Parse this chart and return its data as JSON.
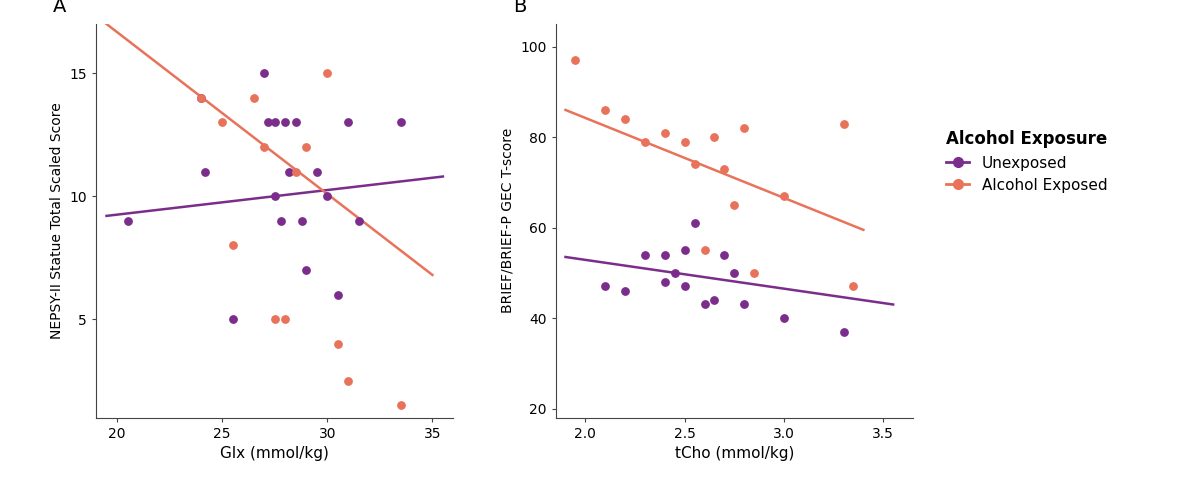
{
  "panel_A": {
    "title": "A",
    "xlabel": "Glx (mmol/kg)",
    "ylabel": "NEPSY-II Statue Total Scaled Score",
    "xlim": [
      19,
      36
    ],
    "ylim": [
      1,
      17
    ],
    "xticks": [
      20,
      25,
      30,
      35
    ],
    "yticks": [
      5,
      10,
      15
    ],
    "unexposed_x": [
      20.5,
      24.0,
      24.2,
      25.5,
      27.0,
      27.2,
      27.5,
      27.5,
      27.8,
      28.0,
      28.2,
      28.5,
      28.8,
      29.0,
      29.5,
      30.0,
      30.5,
      31.0,
      31.5,
      33.5
    ],
    "unexposed_y": [
      9.0,
      14.0,
      11.0,
      5.0,
      15.0,
      13.0,
      13.0,
      10.0,
      9.0,
      13.0,
      11.0,
      13.0,
      9.0,
      7.0,
      11.0,
      10.0,
      6.0,
      13.0,
      9.0,
      13.0
    ],
    "exposed_x": [
      24.0,
      25.0,
      25.5,
      26.5,
      27.0,
      27.5,
      28.0,
      28.5,
      29.0,
      30.0,
      30.5,
      31.0,
      33.5
    ],
    "exposed_y": [
      14.0,
      13.0,
      8.0,
      14.0,
      12.0,
      5.0,
      5.0,
      11.0,
      12.0,
      15.0,
      4.0,
      2.5,
      1.5
    ],
    "unexposed_line_x": [
      19.5,
      35.5
    ],
    "unexposed_line_y": [
      9.2,
      10.8
    ],
    "exposed_line_x": [
      19.5,
      35.0
    ],
    "exposed_line_y": [
      17.0,
      6.8
    ]
  },
  "panel_B": {
    "title": "B",
    "xlabel": "tCho (mmol/kg)",
    "ylabel": "BRIEF/BRIEF-P GEC T-score",
    "xlim": [
      1.85,
      3.65
    ],
    "ylim": [
      18,
      105
    ],
    "xticks": [
      2.0,
      2.5,
      3.0,
      3.5
    ],
    "yticks": [
      20,
      40,
      60,
      80,
      100
    ],
    "unexposed_x": [
      2.1,
      2.2,
      2.3,
      2.4,
      2.4,
      2.45,
      2.5,
      2.5,
      2.55,
      2.6,
      2.65,
      2.7,
      2.75,
      2.8,
      3.0,
      3.3
    ],
    "unexposed_y": [
      47.0,
      46.0,
      54.0,
      54.0,
      48.0,
      50.0,
      55.0,
      47.0,
      61.0,
      43.0,
      44.0,
      54.0,
      50.0,
      43.0,
      40.0,
      37.0
    ],
    "exposed_x": [
      1.95,
      2.1,
      2.2,
      2.3,
      2.4,
      2.5,
      2.55,
      2.6,
      2.65,
      2.7,
      2.75,
      2.8,
      2.85,
      3.0,
      3.3,
      3.35
    ],
    "exposed_y": [
      97.0,
      86.0,
      84.0,
      79.0,
      81.0,
      79.0,
      74.0,
      55.0,
      80.0,
      73.0,
      65.0,
      82.0,
      50.0,
      67.0,
      83.0,
      47.0
    ],
    "unexposed_line_x": [
      1.9,
      3.55
    ],
    "unexposed_line_y": [
      53.5,
      43.0
    ],
    "exposed_line_x": [
      1.9,
      3.4
    ],
    "exposed_line_y": [
      86.0,
      59.5
    ]
  },
  "colors": {
    "unexposed": "#7B2D8B",
    "exposed": "#E8735A"
  },
  "legend_title": "Alcohol Exposure",
  "legend_labels": [
    "Unexposed",
    "Alcohol Exposed"
  ],
  "background_color": "#FFFFFF",
  "point_size": 28,
  "line_width": 1.8,
  "font_family": "DejaVu Sans"
}
